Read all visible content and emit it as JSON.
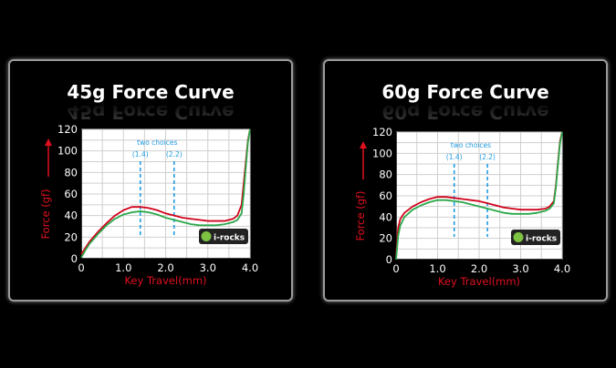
{
  "chart_data": [
    {
      "type": "line",
      "title": "45g Force Curve",
      "xlabel": "Key Travel(mm)",
      "ylabel": "Force (gf)",
      "xlim": [
        0,
        4.0
      ],
      "ylim": [
        0,
        120
      ],
      "xticks": [
        "0",
        "1.0",
        "2.0",
        "3.0",
        "4.0"
      ],
      "yticks": [
        "0",
        "20",
        "40",
        "60",
        "80",
        "100",
        "120"
      ],
      "grid": true,
      "annotation": {
        "text": "two choices",
        "choices": [
          "(1.4)",
          "(2.2)"
        ],
        "positions": [
          1.4,
          2.2
        ],
        "color": "#1e9be0"
      },
      "logo_text": "i-rocks",
      "series": [
        {
          "color": "#d0021b",
          "x": [
            0,
            0.1,
            0.2,
            0.4,
            0.6,
            0.8,
            1.0,
            1.2,
            1.4,
            1.6,
            1.8,
            2.0,
            2.2,
            2.4,
            2.6,
            2.8,
            3.0,
            3.2,
            3.4,
            3.6,
            3.7,
            3.8,
            3.85,
            3.9,
            3.95,
            4.0
          ],
          "y": [
            4,
            10,
            16,
            25,
            33,
            40,
            45,
            48,
            48,
            47,
            45,
            42,
            40,
            38,
            37,
            36,
            35,
            35,
            35,
            37,
            40,
            50,
            70,
            90,
            110,
            122
          ]
        },
        {
          "color": "#2aa84a",
          "x": [
            0,
            0.1,
            0.2,
            0.4,
            0.6,
            0.8,
            1.0,
            1.2,
            1.4,
            1.6,
            1.8,
            2.0,
            2.2,
            2.4,
            2.6,
            2.8,
            3.0,
            3.2,
            3.4,
            3.6,
            3.7,
            3.8,
            3.85,
            3.9,
            3.95,
            4.0
          ],
          "y": [
            1,
            8,
            14,
            23,
            31,
            37,
            41,
            43,
            44,
            43,
            41,
            38,
            36,
            34,
            32,
            31,
            31,
            31,
            32,
            34,
            36,
            42,
            60,
            85,
            108,
            122
          ]
        }
      ]
    },
    {
      "type": "line",
      "title": "60g Force Curve",
      "xlabel": "Key Travel(mm)",
      "ylabel": "Force (gf)",
      "xlim": [
        0,
        4.0
      ],
      "ylim": [
        0,
        120
      ],
      "xticks": [
        "0",
        "1.0",
        "2.0",
        "3.0",
        "4.0"
      ],
      "yticks": [
        "0",
        "20",
        "40",
        "60",
        "80",
        "100",
        "120"
      ],
      "grid": true,
      "annotation": {
        "text": "two choices",
        "choices": [
          "(1.4)",
          "(2.2)"
        ],
        "positions": [
          1.4,
          2.2
        ],
        "color": "#1e9be0"
      },
      "logo_text": "i-rocks",
      "series": [
        {
          "color": "#d0021b",
          "x": [
            0,
            0.05,
            0.1,
            0.2,
            0.4,
            0.6,
            0.8,
            1.0,
            1.2,
            1.4,
            1.6,
            1.8,
            2.0,
            2.2,
            2.4,
            2.6,
            2.8,
            3.0,
            3.2,
            3.4,
            3.6,
            3.7,
            3.8,
            3.85,
            3.9,
            3.95,
            4.0
          ],
          "y": [
            2,
            30,
            38,
            44,
            50,
            54,
            57,
            59,
            59,
            58,
            57,
            56,
            55,
            53,
            51,
            49,
            48,
            47,
            47,
            47,
            48,
            50,
            55,
            70,
            92,
            112,
            122
          ]
        },
        {
          "color": "#2aa84a",
          "x": [
            0,
            0.05,
            0.1,
            0.2,
            0.4,
            0.6,
            0.8,
            1.0,
            1.2,
            1.4,
            1.6,
            1.8,
            2.0,
            2.2,
            2.4,
            2.6,
            2.8,
            3.0,
            3.2,
            3.4,
            3.6,
            3.7,
            3.8,
            3.85,
            3.9,
            3.95,
            4.0
          ],
          "y": [
            0,
            22,
            32,
            40,
            47,
            51,
            54,
            56,
            56,
            55,
            54,
            52,
            50,
            48,
            46,
            44,
            43,
            43,
            43,
            44,
            46,
            48,
            53,
            68,
            90,
            110,
            122
          ]
        }
      ]
    }
  ]
}
